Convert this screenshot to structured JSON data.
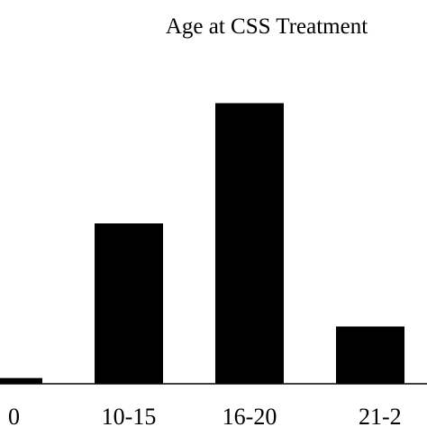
{
  "chart_data": {
    "type": "bar",
    "title": "Age at CSS Treatment",
    "categories": [
      "0",
      "10-15",
      "16-20",
      "21-2"
    ],
    "values": [
      1,
      28,
      49,
      10
    ],
    "ylim": [
      0,
      56
    ],
    "xlabel": "",
    "ylabel": "",
    "grid": false,
    "legend": "none",
    "bar_color": "#000000",
    "axis_color": "#000000",
    "background_color": "#ffffff"
  }
}
